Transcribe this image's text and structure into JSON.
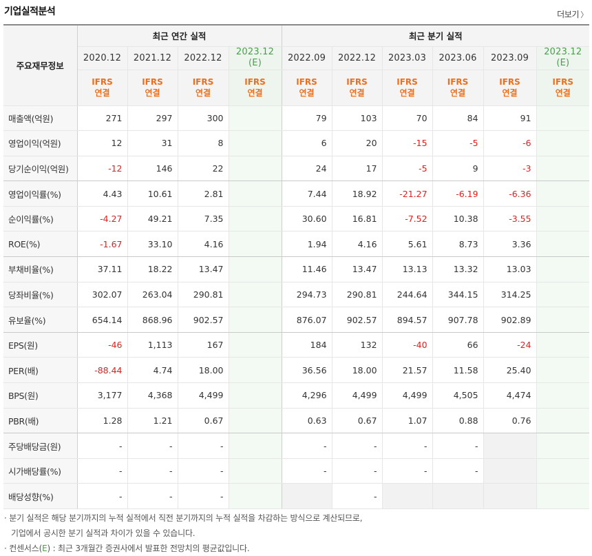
{
  "title": "기업실적분석",
  "more": "더보기",
  "header": {
    "rowhead": "주요재무정보",
    "annual_label": "최근 연간 실적",
    "quarter_label": "최근 분기 실적",
    "annual_periods": [
      "2020.12",
      "2021.12",
      "2022.12"
    ],
    "annual_est": "2023.12",
    "quarter_periods": [
      "2022.09",
      "2022.12",
      "2023.03",
      "2023.06",
      "2023.09"
    ],
    "quarter_est": "2023.12",
    "est_mark": "(E)",
    "ifrs": "IFRS",
    "ifrs_sub": "연결"
  },
  "rows": [
    {
      "label": "매출액(억원)",
      "annual": [
        "271",
        "297",
        "300"
      ],
      "quarter": [
        "79",
        "103",
        "70",
        "84",
        "91"
      ]
    },
    {
      "label": "영업이익(억원)",
      "annual": [
        "12",
        "31",
        "8"
      ],
      "quarter": [
        "6",
        "20",
        "-15",
        "-5",
        "-6"
      ]
    },
    {
      "label": "당기순이익(억원)",
      "annual": [
        "-12",
        "146",
        "22"
      ],
      "quarter": [
        "24",
        "17",
        "-5",
        "9",
        "-3"
      ]
    },
    {
      "label": "영업이익률(%)",
      "annual": [
        "4.43",
        "10.61",
        "2.81"
      ],
      "quarter": [
        "7.44",
        "18.92",
        "-21.27",
        "-6.19",
        "-6.36"
      ]
    },
    {
      "label": "순이익률(%)",
      "annual": [
        "-4.27",
        "49.21",
        "7.35"
      ],
      "quarter": [
        "30.60",
        "16.81",
        "-7.52",
        "10.38",
        "-3.55"
      ]
    },
    {
      "label": "ROE(%)",
      "annual": [
        "-1.67",
        "33.10",
        "4.16"
      ],
      "quarter": [
        "1.94",
        "4.16",
        "5.61",
        "8.73",
        "3.36"
      ]
    },
    {
      "label": "부채비율(%)",
      "annual": [
        "37.11",
        "18.22",
        "13.47"
      ],
      "quarter": [
        "11.46",
        "13.47",
        "13.13",
        "13.32",
        "13.03"
      ]
    },
    {
      "label": "당좌비율(%)",
      "annual": [
        "302.07",
        "263.04",
        "290.81"
      ],
      "quarter": [
        "294.73",
        "290.81",
        "244.64",
        "344.15",
        "314.25"
      ]
    },
    {
      "label": "유보율(%)",
      "annual": [
        "654.14",
        "868.96",
        "902.57"
      ],
      "quarter": [
        "876.07",
        "902.57",
        "894.57",
        "907.78",
        "902.89"
      ]
    },
    {
      "label": "EPS(원)",
      "annual": [
        "-46",
        "1,113",
        "167"
      ],
      "quarter": [
        "184",
        "132",
        "-40",
        "66",
        "-24"
      ]
    },
    {
      "label": "PER(배)",
      "annual": [
        "-88.44",
        "4.74",
        "18.00"
      ],
      "quarter": [
        "36.56",
        "18.00",
        "21.57",
        "11.58",
        "25.40"
      ]
    },
    {
      "label": "BPS(원)",
      "annual": [
        "3,177",
        "4,368",
        "4,499"
      ],
      "quarter": [
        "4,296",
        "4,499",
        "4,499",
        "4,505",
        "4,474"
      ]
    },
    {
      "label": "PBR(배)",
      "annual": [
        "1.28",
        "1.21",
        "0.67"
      ],
      "quarter": [
        "0.63",
        "0.67",
        "1.07",
        "0.88",
        "0.76"
      ]
    },
    {
      "label": "주당배당금(원)",
      "annual": [
        "-",
        "-",
        "-"
      ],
      "quarter": [
        "-",
        "-",
        "-",
        "-",
        ""
      ]
    },
    {
      "label": "시가배당률(%)",
      "annual": [
        "-",
        "-",
        "-"
      ],
      "quarter": [
        "-",
        "-",
        "-",
        "-",
        ""
      ]
    },
    {
      "label": "배당성향(%)",
      "annual": [
        "-",
        "-",
        "-"
      ],
      "quarter": [
        "",
        "-",
        "",
        "",
        ""
      ]
    }
  ],
  "notes": {
    "line1": "· 분기 실적은 해당 분기까지의 누적 실적에서 직전 분기까지의 누적 실적을 차감하는 방식으로 계산되므로,",
    "line2": "기업에서 공시한 분기 실적과 차이가 있을 수 있습니다.",
    "line3_prefix": "· 컨센서스(",
    "line3_e": "E",
    "line3_suffix": ") : 최근 3개월간 증권사에서 발표한 전망치의 평균값입니다."
  },
  "colors": {
    "negative": "#e02020",
    "ifrs": "#ee6e1a",
    "estimate": "#4a9e4a"
  }
}
